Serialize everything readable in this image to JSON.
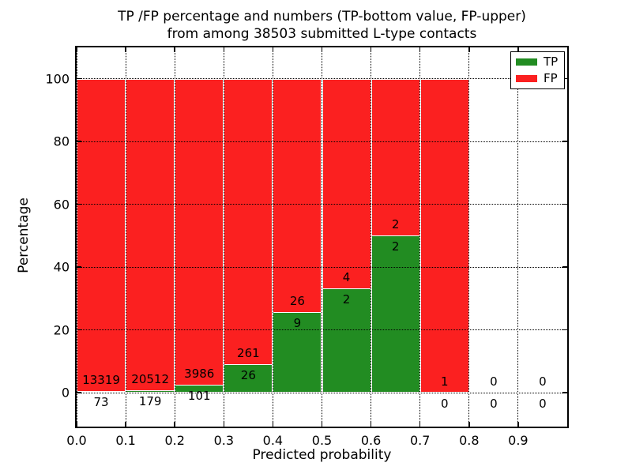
{
  "title": {
    "line1": "TP /FP percentage and numbers (TP-bottom value, FP-upper)",
    "line2": "from among 38503 submitted L-type contacts"
  },
  "colors": {
    "tp_green": "#228c22",
    "fp_red": "#fb2020",
    "grid": "#000000",
    "background": "#ffffff"
  },
  "chart_data": {
    "type": "bar",
    "stacked": true,
    "title": "TP /FP percentage and numbers (TP-bottom value, FP-upper) from among 38503 submitted L-type contacts",
    "xlabel": "Predicted probability",
    "ylabel": "Percentage",
    "xlim": [
      0.0,
      1.0
    ],
    "ylim": [
      -10.8,
      110
    ],
    "grid": "dotted",
    "x_tick_labels": [
      "0.0",
      "0.1",
      "0.2",
      "0.3",
      "0.4",
      "0.5",
      "0.6",
      "0.7",
      "0.8",
      "0.9"
    ],
    "y_tick_values": [
      0,
      20,
      40,
      60,
      80,
      100
    ],
    "bin_width": 0.1,
    "legend": {
      "position": "upper right",
      "entries": [
        {
          "name": "TP",
          "color": "#228c22"
        },
        {
          "name": "FP",
          "color": "#fb2020"
        }
      ]
    },
    "total_contacts": 38503,
    "bins": [
      {
        "x0": 0.0,
        "x1": 0.1,
        "tp": 73,
        "fp": 13319,
        "tp_pct": 0.55
      },
      {
        "x0": 0.1,
        "x1": 0.2,
        "tp": 179,
        "fp": 20512,
        "tp_pct": 0.87
      },
      {
        "x0": 0.2,
        "x1": 0.3,
        "tp": 101,
        "fp": 3986,
        "tp_pct": 2.47
      },
      {
        "x0": 0.3,
        "x1": 0.4,
        "tp": 26,
        "fp": 261,
        "tp_pct": 9.06
      },
      {
        "x0": 0.4,
        "x1": 0.5,
        "tp": 9,
        "fp": 26,
        "tp_pct": 25.71
      },
      {
        "x0": 0.5,
        "x1": 0.6,
        "tp": 2,
        "fp": 4,
        "tp_pct": 33.33
      },
      {
        "x0": 0.6,
        "x1": 0.7,
        "tp": 2,
        "fp": 2,
        "tp_pct": 50.0
      },
      {
        "x0": 0.7,
        "x1": 0.8,
        "tp": 0,
        "fp": 1,
        "tp_pct": 0.0
      },
      {
        "x0": 0.8,
        "x1": 0.9,
        "tp": 0,
        "fp": 0,
        "tp_pct": null
      },
      {
        "x0": 0.9,
        "x1": 1.0,
        "tp": 0,
        "fp": 0,
        "tp_pct": null
      }
    ]
  }
}
